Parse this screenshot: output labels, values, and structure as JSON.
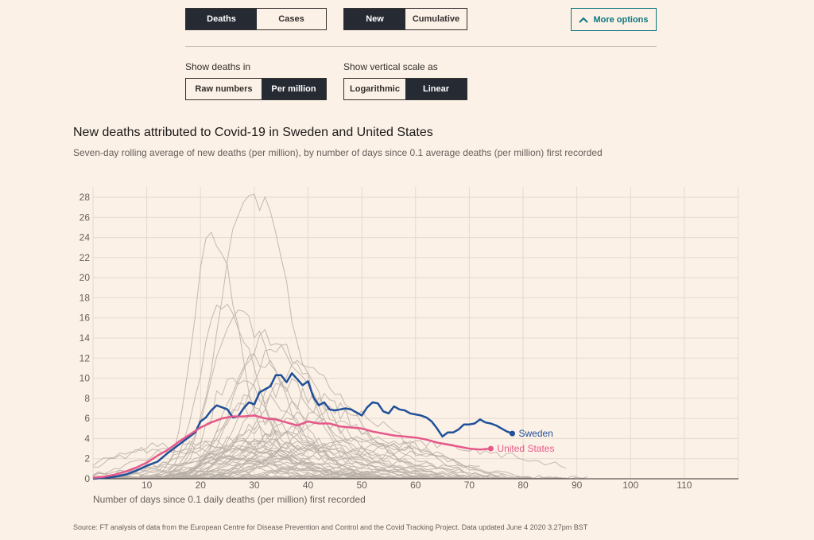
{
  "controls": {
    "metric": {
      "options": [
        "Deaths",
        "Cases"
      ],
      "selected": 0
    },
    "mode": {
      "options": [
        "New",
        "Cumulative"
      ],
      "selected": 0
    },
    "more_options_label": "More options",
    "show_deaths_label": "Show deaths in",
    "per": {
      "options": [
        "Raw numbers",
        "Per million"
      ],
      "selected": 1
    },
    "scale_label": "Show vertical scale as",
    "scale": {
      "options": [
        "Logarithmic",
        "Linear"
      ],
      "selected": 1
    }
  },
  "chart_data": {
    "type": "line",
    "title": "New deaths attributed to Covid-19 in Sweden and United States",
    "subtitle": "Seven-day rolling average of new deaths (per million), by number of days since 0.1 average deaths (per million) first recorded",
    "xlabel": "Number of days since 0.1 daily deaths (per million) first recorded",
    "ylabel": "",
    "xlim": [
      0,
      120
    ],
    "ylim": [
      0,
      28
    ],
    "xticks": [
      10,
      20,
      30,
      40,
      50,
      60,
      70,
      80,
      90,
      100,
      110
    ],
    "yticks": [
      0,
      2,
      4,
      6,
      8,
      10,
      12,
      14,
      16,
      18,
      20,
      22,
      24,
      26,
      28
    ],
    "grid": true,
    "legend": "direct labels at line ends",
    "series": [
      {
        "name": "Sweden",
        "color": "#1f5099",
        "x": [
          0,
          2,
          4,
          6,
          8,
          10,
          12,
          14,
          16,
          18,
          19,
          20,
          21,
          22,
          23,
          24,
          25,
          26,
          27,
          28,
          29,
          30,
          31,
          32,
          33,
          34,
          35,
          36,
          37,
          38,
          39,
          40,
          41,
          42,
          43,
          44,
          45,
          46,
          47,
          48,
          49,
          50,
          51,
          52,
          53,
          54,
          55,
          56,
          57,
          58,
          59,
          60,
          61,
          62,
          63,
          64,
          65,
          66,
          67,
          68,
          69,
          70,
          71,
          72,
          73,
          74,
          75,
          76,
          77,
          78
        ],
        "y": [
          0.0,
          0.1,
          0.2,
          0.4,
          0.8,
          1.3,
          1.7,
          2.6,
          3.4,
          4.2,
          4.6,
          5.7,
          6.1,
          6.8,
          7.3,
          7.1,
          6.9,
          6.1,
          6.2,
          7.0,
          7.6,
          7.4,
          8.6,
          8.9,
          9.2,
          10.3,
          10.3,
          9.6,
          10.5,
          9.9,
          9.3,
          9.7,
          8.1,
          7.3,
          7.6,
          6.9,
          6.8,
          6.9,
          7.0,
          6.9,
          6.6,
          6.3,
          7.1,
          7.6,
          7.5,
          6.7,
          6.5,
          7.2,
          6.9,
          6.8,
          6.5,
          6.4,
          6.3,
          6.1,
          5.7,
          5.0,
          4.2,
          4.6,
          4.6,
          4.9,
          5.4,
          5.4,
          5.5,
          5.9,
          5.6,
          5.5,
          5.3,
          5.0,
          4.7,
          4.5
        ]
      },
      {
        "name": "United States",
        "color": "#e5598b",
        "x": [
          0,
          2,
          4,
          6,
          8,
          10,
          12,
          14,
          16,
          18,
          20,
          22,
          24,
          26,
          28,
          30,
          32,
          34,
          36,
          38,
          40,
          42,
          44,
          46,
          48,
          50,
          52,
          54,
          56,
          58,
          60,
          62,
          64,
          66,
          68,
          70,
          72,
          74
        ],
        "y": [
          0.1,
          0.2,
          0.4,
          0.7,
          1.1,
          1.6,
          2.3,
          2.9,
          3.7,
          4.4,
          5.1,
          5.6,
          6.0,
          6.2,
          6.2,
          6.3,
          6.0,
          5.9,
          5.6,
          5.3,
          5.7,
          5.5,
          5.5,
          5.2,
          5.1,
          5.0,
          4.7,
          4.5,
          4.3,
          4.2,
          4.1,
          3.9,
          3.6,
          3.4,
          3.2,
          3.0,
          2.9,
          3.0
        ]
      }
    ],
    "background_series_color": "#b8afa7"
  },
  "source_note": "Source: FT analysis of data from the European Centre for Disease Prevention and Control and the Covid Tracking Project. Data updated June 4 2020 3.27pm BST"
}
